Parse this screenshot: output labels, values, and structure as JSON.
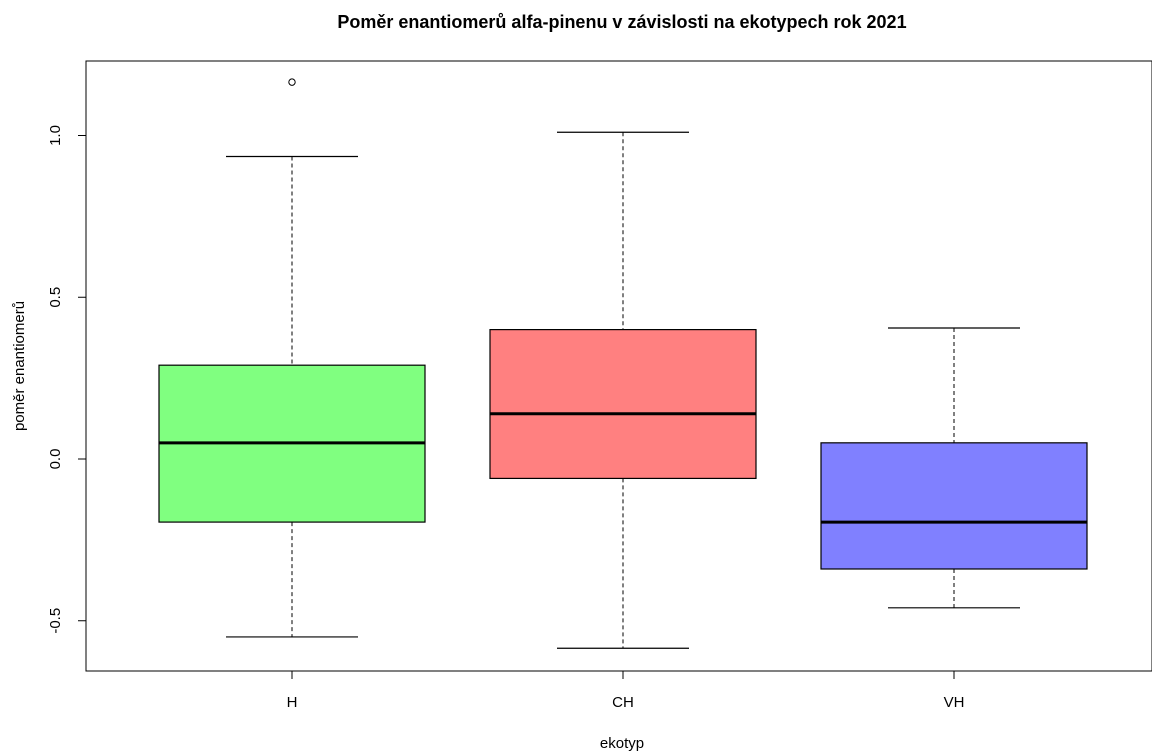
{
  "chart_data": {
    "type": "box",
    "title": "Poměr enantiomerů alfa-pinenu v závislosti na ekotypech rok 2021",
    "xlabel": "ekotyp",
    "ylabel": "poměr enantiomerů",
    "categories": [
      "H",
      "CH",
      "VH"
    ],
    "ylim": [
      -0.65,
      1.23
    ],
    "yticks": [
      -0.5,
      0.0,
      0.5,
      1.0
    ],
    "ytick_labels": [
      "-0.5",
      "0.0",
      "0.5",
      "1.0"
    ],
    "grid": false,
    "legend": "none",
    "boxes": [
      {
        "category": "H",
        "whisker_low": -0.55,
        "q1": -0.195,
        "median": 0.05,
        "q3": 0.29,
        "whisker_high": 0.935,
        "outliers": [
          1.165
        ],
        "color": "#80ff80"
      },
      {
        "category": "CH",
        "whisker_low": -0.585,
        "q1": -0.06,
        "median": 0.14,
        "q3": 0.4,
        "whisker_high": 1.01,
        "outliers": [],
        "color": "#ff8080"
      },
      {
        "category": "VH",
        "whisker_low": -0.46,
        "q1": -0.34,
        "median": -0.195,
        "q3": 0.05,
        "whisker_high": 0.405,
        "outliers": [],
        "color": "#8080ff"
      }
    ]
  }
}
